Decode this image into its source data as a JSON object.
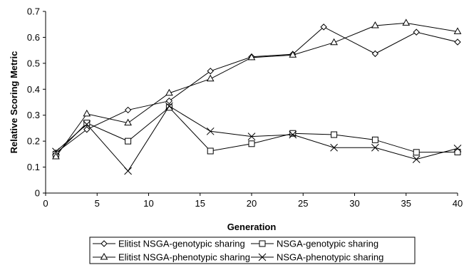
{
  "chart_data": {
    "type": "line",
    "title": "",
    "xlabel": "Generation",
    "ylabel": "Relative Scoring Metric",
    "xlim": [
      0,
      40
    ],
    "ylim": [
      0,
      0.7
    ],
    "xticks": [
      "0",
      "5",
      "10",
      "15",
      "20",
      "25",
      "30",
      "35",
      "40"
    ],
    "yticks": [
      "0",
      "0.1",
      "0.2",
      "0.3",
      "0.4",
      "0.5",
      "0.6",
      "0.7"
    ],
    "grid": false,
    "legend_position": "bottom",
    "series": [
      {
        "name": "Elitist NSGA-genotypic sharing",
        "marker": "diamond",
        "x": [
          1,
          4,
          8,
          12,
          16,
          20,
          24,
          27,
          32,
          36,
          40
        ],
        "y": [
          0.155,
          0.245,
          0.32,
          0.355,
          0.47,
          0.525,
          0.535,
          0.64,
          0.537,
          0.62,
          0.582
        ]
      },
      {
        "name": "NSGA-genotypic sharing",
        "marker": "square",
        "x": [
          1,
          4,
          8,
          12,
          16,
          20,
          24,
          28,
          32,
          36,
          40
        ],
        "y": [
          0.15,
          0.27,
          0.2,
          0.33,
          0.162,
          0.19,
          0.23,
          0.225,
          0.205,
          0.157,
          0.158
        ]
      },
      {
        "name": "Elitist NSGA-phenotypic sharing",
        "marker": "triangle",
        "x": [
          1,
          4,
          8,
          12,
          16,
          20,
          24,
          28,
          32,
          35,
          40
        ],
        "y": [
          0.14,
          0.305,
          0.27,
          0.385,
          0.44,
          0.522,
          0.532,
          0.58,
          0.645,
          0.655,
          0.622
        ]
      },
      {
        "name": "NSGA-phenotypic sharing",
        "marker": "x",
        "x": [
          1,
          4,
          8,
          12,
          16,
          20,
          24,
          28,
          32,
          36,
          40
        ],
        "y": [
          0.16,
          0.265,
          0.085,
          0.335,
          0.238,
          0.218,
          0.225,
          0.175,
          0.175,
          0.13,
          0.172
        ]
      }
    ]
  }
}
